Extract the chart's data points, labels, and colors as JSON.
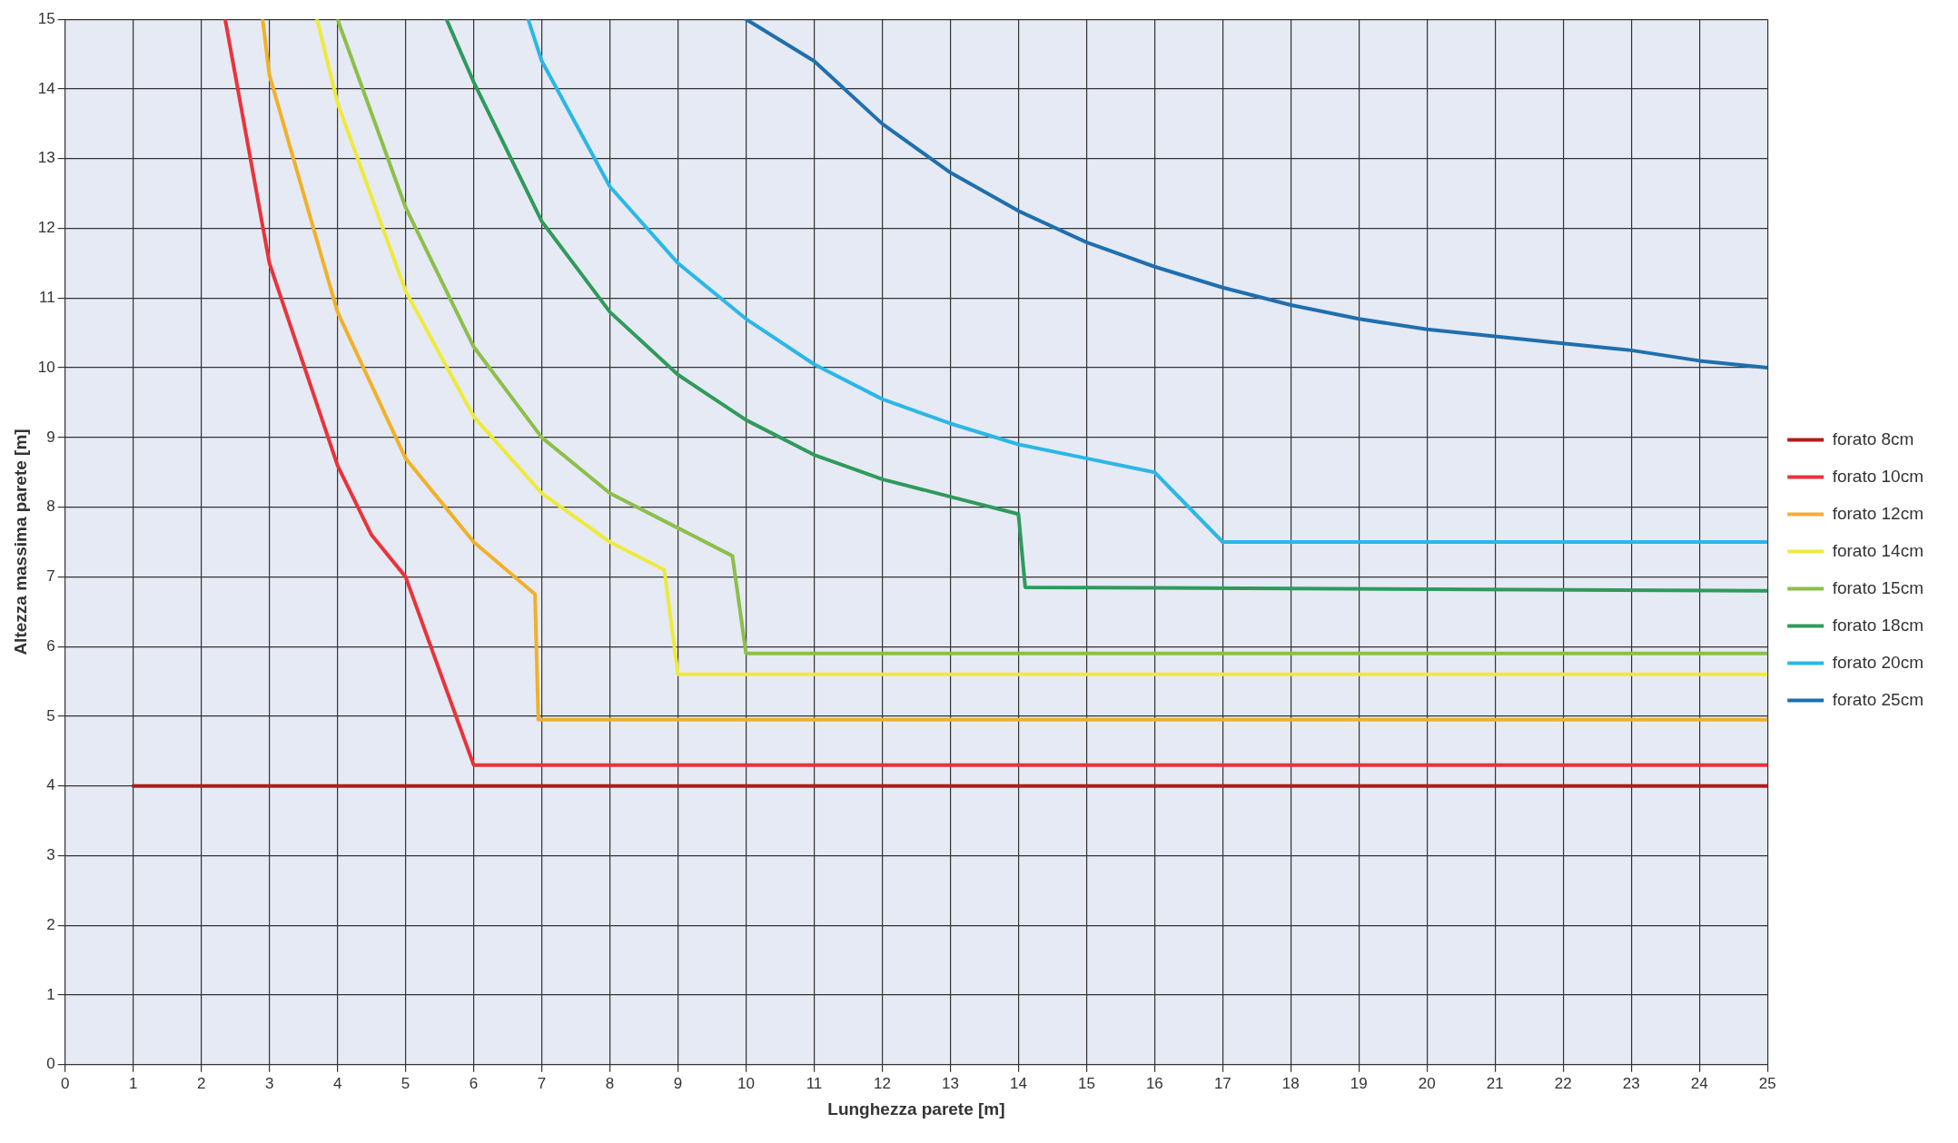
{
  "chart_data": {
    "type": "line",
    "xlabel": "Lunghezza parete [m]",
    "ylabel": "Altezza massima parete [m]",
    "xlim": [
      0,
      25
    ],
    "ylim": [
      0,
      15
    ],
    "xticks": [
      0,
      1,
      2,
      3,
      4,
      5,
      6,
      7,
      8,
      9,
      10,
      11,
      12,
      13,
      14,
      15,
      16,
      17,
      18,
      19,
      20,
      21,
      22,
      23,
      24,
      25
    ],
    "yticks": [
      0,
      1,
      2,
      3,
      4,
      5,
      6,
      7,
      8,
      9,
      10,
      11,
      12,
      13,
      14,
      15
    ],
    "grid": true,
    "legend": "right",
    "marker": "none",
    "line_style": "solid",
    "series": [
      {
        "name": "forato 8cm",
        "color": "#b01c1c",
        "x": [
          1,
          25
        ],
        "values": [
          4,
          4
        ]
      },
      {
        "name": "forato 10cm",
        "color": "#e8343a",
        "x": [
          2.35,
          3,
          4,
          4.5,
          5,
          6,
          25
        ],
        "values": [
          15,
          11.5,
          8.6,
          7.6,
          7.0,
          4.3,
          4.3
        ]
      },
      {
        "name": "forato 12cm",
        "color": "#f0b12a",
        "x": [
          2.9,
          3,
          4,
          5,
          6,
          6.9,
          6.95,
          25
        ],
        "values": [
          15,
          14.2,
          10.8,
          8.7,
          7.5,
          6.75,
          4.95,
          4.95
        ]
      },
      {
        "name": "forato 14cm",
        "color": "#eeea3c",
        "x": [
          3.7,
          4,
          5,
          6,
          7,
          8,
          8.8,
          9,
          25
        ],
        "values": [
          15,
          13.8,
          11.1,
          9.3,
          8.2,
          7.5,
          7.1,
          5.6,
          5.6
        ]
      },
      {
        "name": "forato 15cm",
        "color": "#8cbf4a",
        "x": [
          4,
          5,
          6,
          7,
          8,
          9,
          9.8,
          10,
          25
        ],
        "values": [
          15,
          12.3,
          10.3,
          9.0,
          8.2,
          7.7,
          7.3,
          5.9,
          5.9
        ]
      },
      {
        "name": "forato 18cm",
        "color": "#2f9a5c",
        "x": [
          5.6,
          6,
          7,
          8,
          9,
          10,
          11,
          12,
          13,
          14,
          14.1,
          25
        ],
        "values": [
          15,
          14.1,
          12.1,
          10.8,
          9.9,
          9.25,
          8.75,
          8.4,
          8.15,
          7.9,
          6.85,
          6.8
        ]
      },
      {
        "name": "forato 20cm",
        "color": "#2bb7e6",
        "x": [
          6.8,
          7,
          8,
          9,
          10,
          11,
          12,
          13,
          14,
          15,
          16,
          17,
          25
        ],
        "values": [
          15,
          14.4,
          12.6,
          11.5,
          10.7,
          10.05,
          9.55,
          9.2,
          8.9,
          8.7,
          8.5,
          7.5,
          7.5
        ]
      },
      {
        "name": "forato 25cm",
        "color": "#1f6fae",
        "x": [
          10,
          11,
          12,
          13,
          14,
          15,
          16,
          17,
          18,
          19,
          20,
          21,
          22,
          23,
          24,
          25
        ],
        "values": [
          15,
          14.4,
          13.5,
          12.8,
          12.25,
          11.8,
          11.45,
          11.15,
          10.9,
          10.7,
          10.55,
          10.45,
          10.35,
          10.25,
          10.1,
          10.0
        ]
      }
    ]
  }
}
